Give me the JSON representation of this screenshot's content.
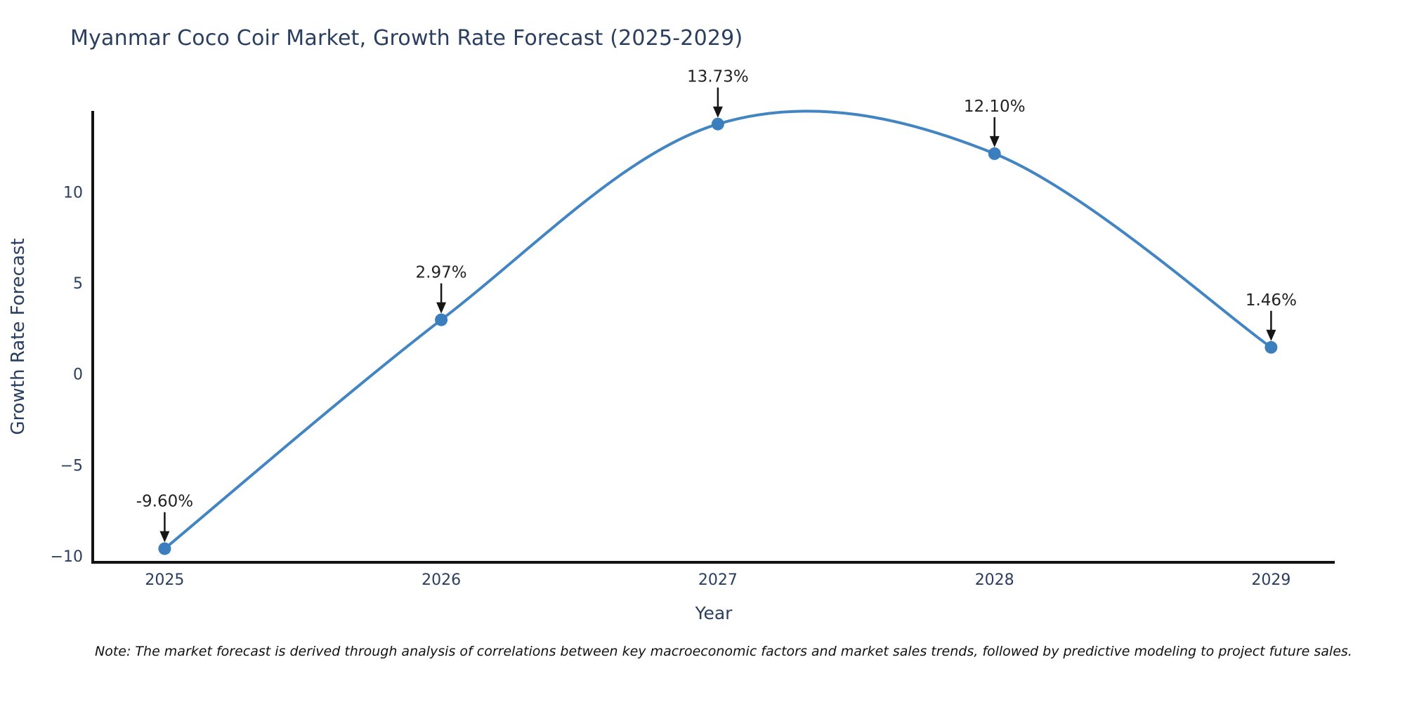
{
  "page": {
    "background": "#ffffff"
  },
  "chart_data": {
    "type": "line",
    "line_shape": "spline",
    "title": "Myanmar Coco Coir Market, Growth Rate Forecast (2025-2029)",
    "xlabel": "Year",
    "ylabel": "Growth Rate Forecast",
    "categories": [
      2025,
      2026,
      2027,
      2028,
      2029
    ],
    "values": [
      -9.6,
      2.97,
      13.73,
      12.1,
      1.46
    ],
    "point_labels": [
      "-9.60%",
      "2.97%",
      "13.73%",
      "12.10%",
      "1.46%"
    ],
    "x_tick_labels": [
      "2025",
      "2026",
      "2027",
      "2028",
      "2029"
    ],
    "y_ticks": [
      10,
      5,
      0,
      -5,
      -10
    ],
    "xlim": [
      2024.74,
      2029.23
    ],
    "ylim": [
      -10.35,
      14.45
    ],
    "grid": false,
    "legend": "none",
    "markers": true,
    "annotations_arrows": true,
    "colors": {
      "line": "#4285c2",
      "marker": "#3a7ebe",
      "annotation_text": "#222222",
      "arrow": "#161616",
      "axis_line": "#131313",
      "tick_label": "#2a3f5f",
      "axis_title": "#2a3f5f",
      "title": "#2a3f5f",
      "note": "#111111"
    }
  },
  "footnote": "Note: The market forecast is derived through analysis of correlations between key macroeconomic factors and market sales trends, followed by predictive modeling to project future sales."
}
